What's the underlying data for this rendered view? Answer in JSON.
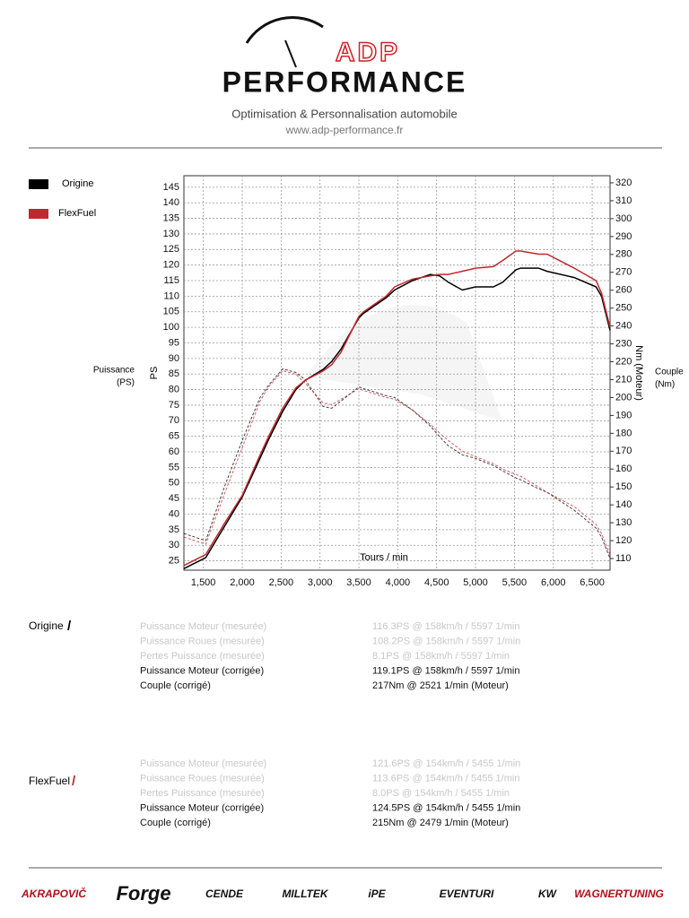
{
  "header": {
    "brand_top": "ADP",
    "brand": "PERFORMANCE",
    "tagline": "Optimisation & Personnalisation automobile",
    "url": "www.adp-performance.fr"
  },
  "chart_data": {
    "type": "line",
    "xlabel": "Tours / min",
    "ylabel": "PS",
    "y_title": [
      "Puissance",
      "(PS)"
    ],
    "y2label": "Nm (Moteur)",
    "y2_title": [
      "Couple",
      "(Nm)"
    ],
    "x": [
      1250,
      1530,
      1770,
      2000,
      2230,
      2340,
      2520,
      2690,
      2810,
      3040,
      3150,
      3270,
      3500,
      3560,
      3850,
      3960,
      4190,
      4420,
      4540,
      4650,
      4830,
      5000,
      5230,
      5350,
      5520,
      5580,
      5810,
      5920,
      6270,
      6550,
      6620,
      6730
    ],
    "series": [
      {
        "name": "Origine",
        "color": "#000000",
        "values": [
          22.5,
          26,
          36,
          45.5,
          58,
          64,
          73,
          80,
          83,
          86.5,
          89,
          93,
          103,
          104.5,
          109.5,
          112,
          115,
          117,
          116.5,
          114.5,
          112,
          113,
          113,
          114.5,
          118.5,
          119,
          119,
          118,
          116,
          113,
          110,
          99
        ],
        "torque": [
          124,
          120,
          150,
          176,
          200,
          207,
          216,
          214,
          210,
          195,
          194,
          198,
          206,
          205,
          201,
          200,
          193,
          184,
          178,
          173,
          168,
          166,
          162,
          159,
          155,
          154,
          149,
          147,
          137,
          127,
          122,
          110
        ]
      },
      {
        "name": "FlexFuel",
        "color": "#c0282d",
        "values": [
          23.5,
          27,
          37,
          46,
          59,
          65,
          74,
          80.5,
          83,
          86,
          88,
          92,
          103.5,
          105,
          110,
          113,
          115.5,
          116.5,
          117,
          117,
          118,
          119,
          119.5,
          121.5,
          124.5,
          124.5,
          123.5,
          123.5,
          119,
          115,
          111,
          100
        ],
        "torque": [
          122,
          118,
          146,
          172,
          198,
          206,
          215,
          213,
          208,
          197,
          196,
          199,
          205,
          204,
          200,
          199,
          193,
          185,
          180,
          176,
          170,
          167,
          163,
          160,
          157,
          156,
          150,
          147,
          139,
          129,
          124,
          112
        ]
      }
    ],
    "xlim": [
      1250,
      6730
    ],
    "xticks": [
      {
        "value": 1500,
        "label": "1,500"
      },
      {
        "value": 2000,
        "label": "2,000"
      },
      {
        "value": 2500,
        "label": "2,500"
      },
      {
        "value": 3000,
        "label": "3,000"
      },
      {
        "value": 3500,
        "label": "3,500"
      },
      {
        "value": 4000,
        "label": "4,000"
      },
      {
        "value": 4500,
        "label": "4,500"
      },
      {
        "value": 5000,
        "label": "5,000"
      },
      {
        "value": 5500,
        "label": "5,500"
      },
      {
        "value": 6000,
        "label": "6,000"
      },
      {
        "value": 6500,
        "label": "6,500"
      }
    ],
    "ylim": [
      22,
      148.7
    ],
    "yticks": [
      25,
      30,
      35,
      40,
      45,
      50,
      55,
      60,
      65,
      70,
      75,
      80,
      85,
      90,
      95,
      100,
      105,
      110,
      115,
      120,
      125,
      130,
      135,
      140,
      145
    ],
    "y2lim": [
      103.5,
      324
    ],
    "y2ticks": [
      110,
      120,
      130,
      140,
      150,
      160,
      170,
      180,
      190,
      200,
      210,
      220,
      230,
      240,
      250,
      260,
      270,
      280,
      290,
      300,
      310,
      320
    ],
    "grid": true
  },
  "results": [
    {
      "label": "Origine",
      "rows": [
        {
          "name": "Puissance Moteur (mesurée)",
          "value": "116.3PS @ 158km/h / 5597 1/min",
          "faded": true
        },
        {
          "name": "Puissance Roues (mesurée)",
          "value": "108.2PS @ 158km/h / 5597 1/min",
          "faded": true
        },
        {
          "name": "Pertes Puissance (mesurée)",
          "value": "8.1PS @ 158km/h / 5597 1/min",
          "faded": true
        },
        {
          "name": "Puissance Moteur (corrigée)",
          "value": "119.1PS @ 158km/h / 5597 1/min",
          "faded": false
        },
        {
          "name": "Couple (corrigé)",
          "value": "217Nm @ 2521 1/min (Moteur)",
          "faded": false
        }
      ]
    },
    {
      "label": "FlexFuel",
      "rows": [
        {
          "name": "Puissance Moteur (mesurée)",
          "value": "121.6PS @ 154km/h / 5455 1/min",
          "faded": true
        },
        {
          "name": "Puissance Roues (mesurée)",
          "value": "113.6PS @ 154km/h / 5455 1/min",
          "faded": true
        },
        {
          "name": "Pertes Puissance (mesurée)",
          "value": "8.0PS @ 154km/h / 5455 1/min",
          "faded": true
        },
        {
          "name": "Puissance Moteur (corrigée)",
          "value": "124.5PS @ 154km/h / 5455 1/min",
          "faded": false
        },
        {
          "name": "Couple (corrigé)",
          "value": "215Nm @ 2479 1/min (Moteur)",
          "faded": false
        }
      ]
    }
  ],
  "sponsors": [
    "AKRAPOVIČ",
    "Forge",
    "CENDE",
    "MILLTEK",
    "iPE",
    "EVENTURI",
    "KW",
    "WAGNERTUNING"
  ]
}
